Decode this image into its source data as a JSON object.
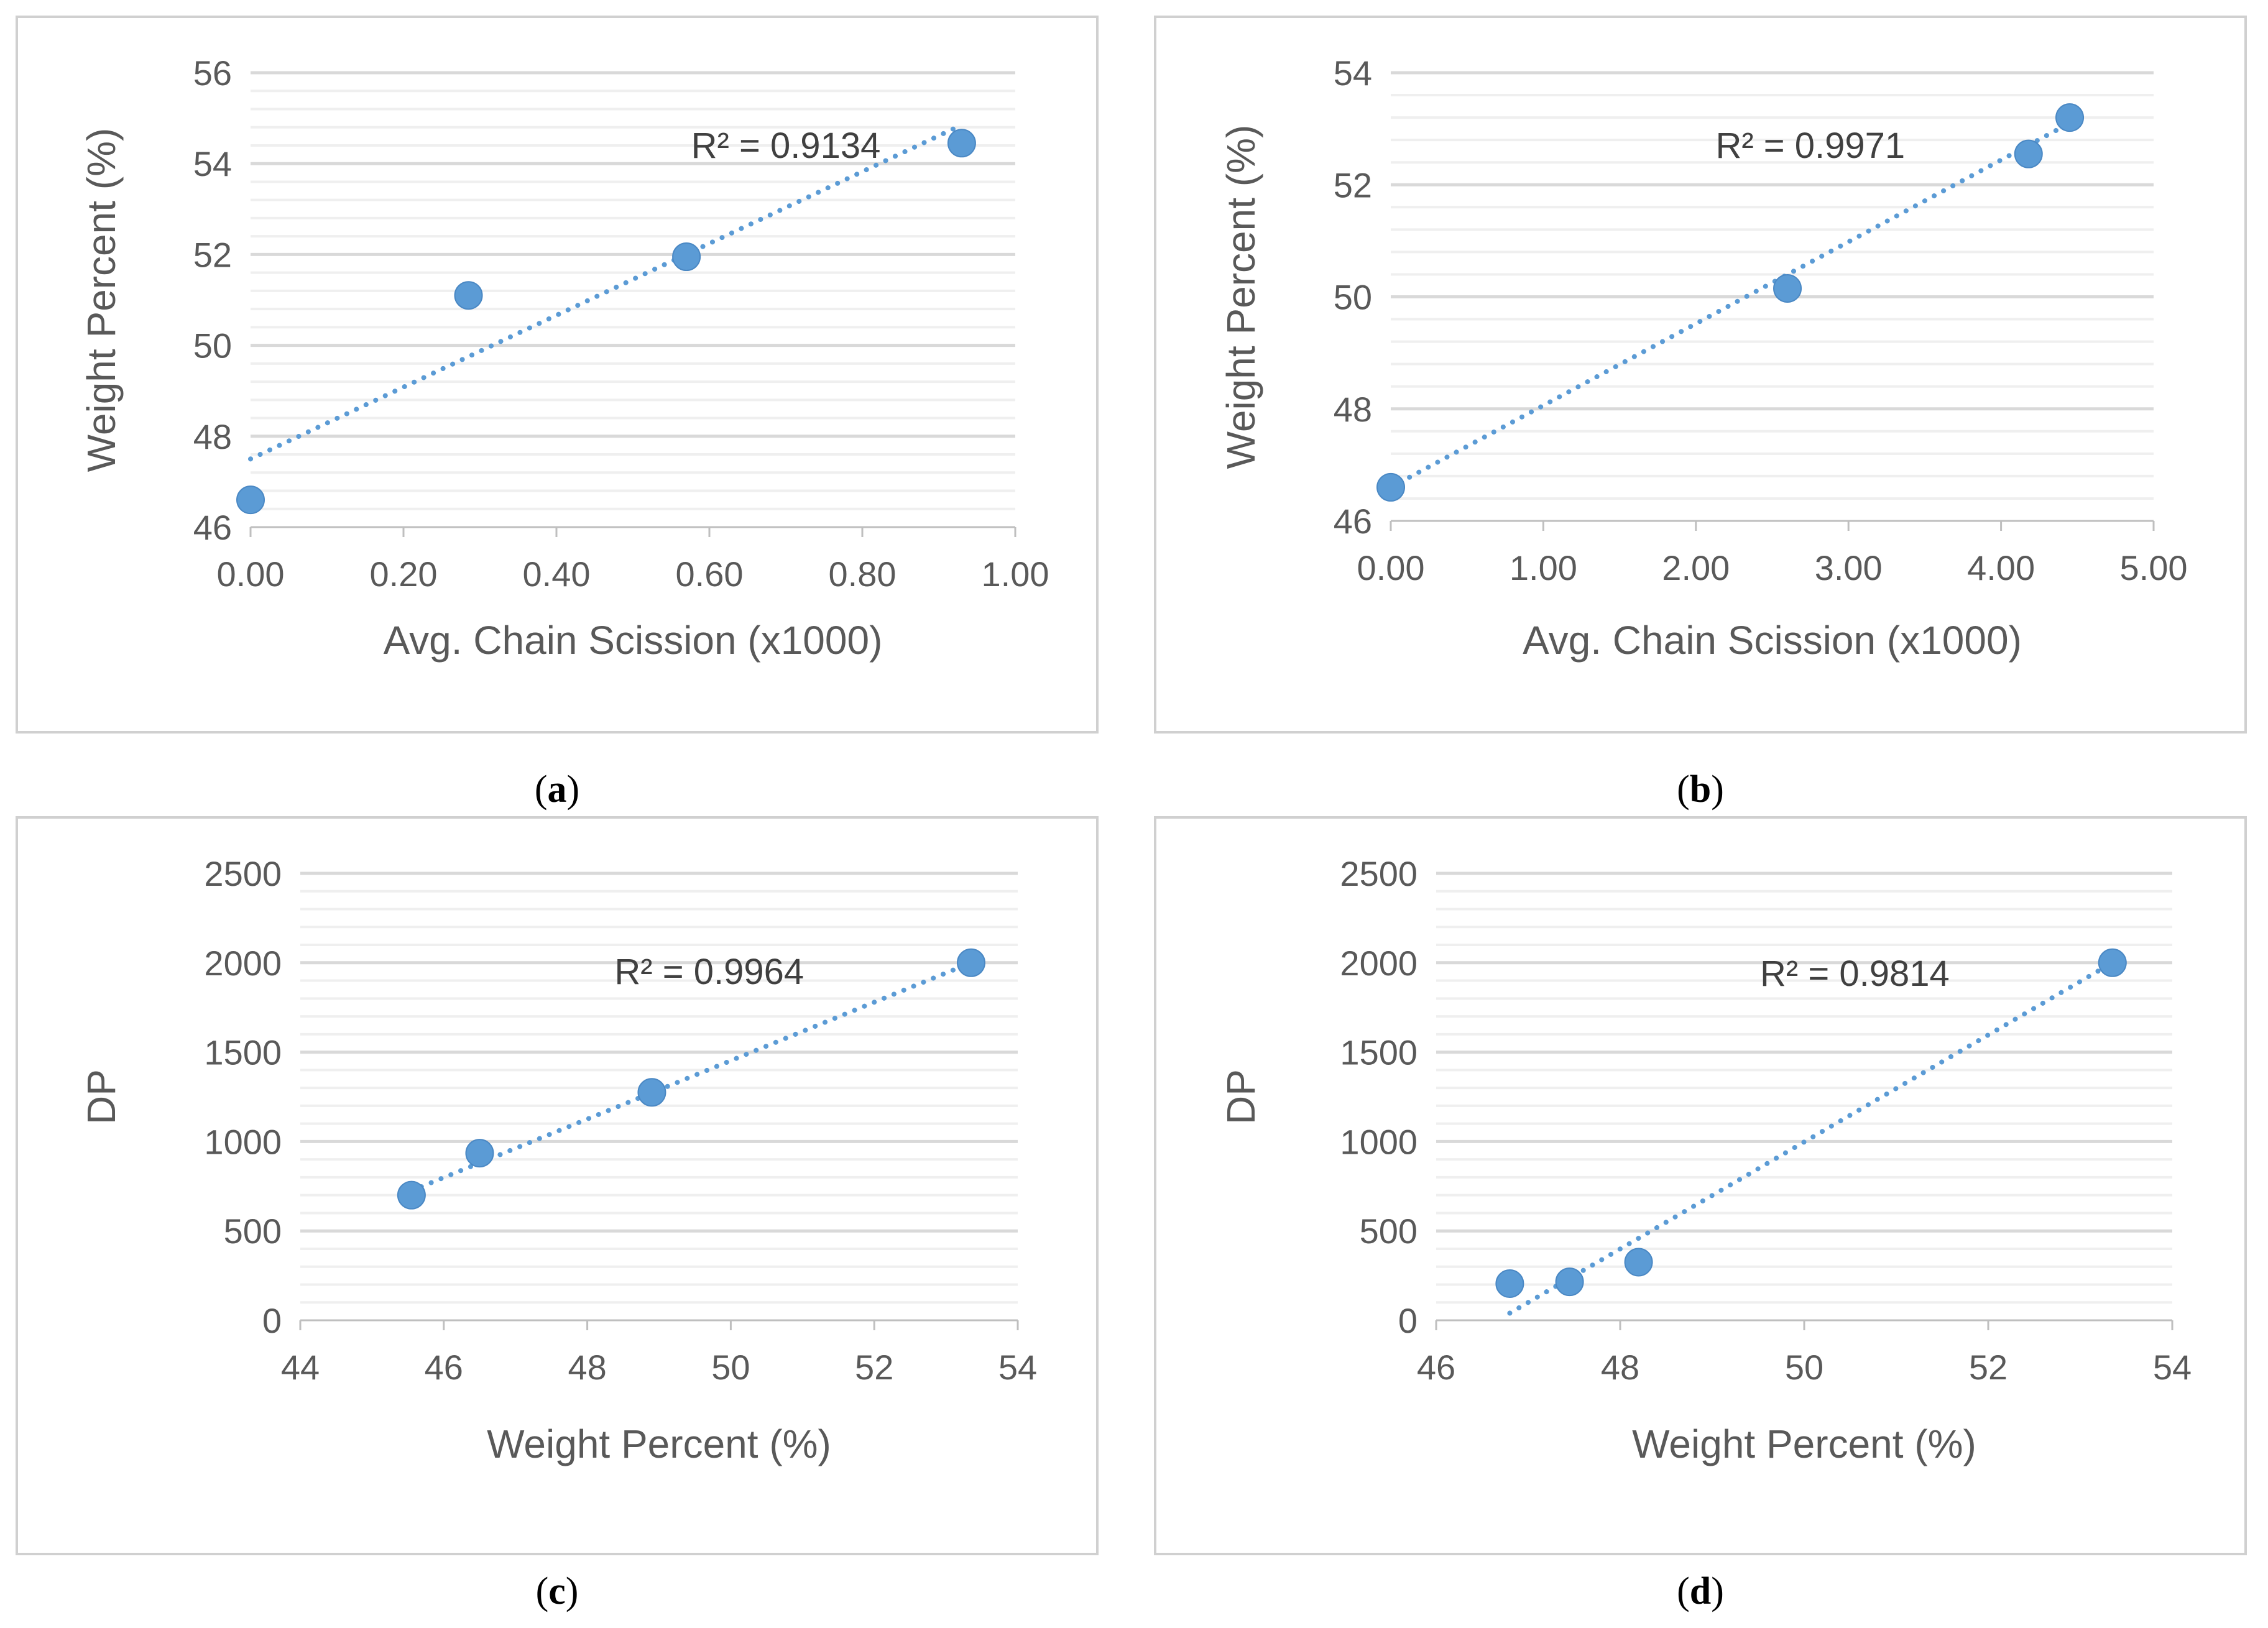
{
  "figure": {
    "colors": {
      "marker": "#5b9bd5",
      "trendline": "#5b9bd5",
      "major_grid": "#d9d9d9",
      "minor_grid": "#efefef",
      "text": "#595959"
    }
  },
  "chart_data": [
    {
      "id": "a",
      "type": "scatter",
      "caption_open": "(",
      "caption_letter": "a",
      "caption_close": ")",
      "xlabel": "Avg. Chain Scission (x1000)",
      "ylabel": "Weight Percent (%)",
      "xlim": [
        0,
        1
      ],
      "ylim": [
        46,
        56
      ],
      "xticks": [
        0,
        0.2,
        0.4,
        0.6,
        0.8,
        1.0
      ],
      "xtick_labels": [
        "0.00",
        "0.20",
        "0.40",
        "0.60",
        "0.80",
        "1.00"
      ],
      "yticks": [
        46,
        48,
        50,
        52,
        54,
        56
      ],
      "ytick_labels": [
        "46",
        "48",
        "50",
        "52",
        "54",
        "56"
      ],
      "minor_y_step": 0.4,
      "points": [
        {
          "x": 0.0,
          "y": 46.6
        },
        {
          "x": 0.285,
          "y": 51.1
        },
        {
          "x": 0.57,
          "y": 51.95
        },
        {
          "x": 0.93,
          "y": 54.45
        }
      ],
      "trendline": {
        "x_start": 0.0,
        "x_end": 0.93,
        "y_start": 47.5,
        "y_end": 54.85
      },
      "r2_text": "R² = 0.9134",
      "r2_anchor": {
        "x": 0.7,
        "y": 54.4
      }
    },
    {
      "id": "b",
      "type": "scatter",
      "caption_open": "(",
      "caption_letter": "b",
      "caption_close": ")",
      "xlabel": "Avg. Chain Scission (x1000)",
      "ylabel": "Weight Percent (%)",
      "xlim": [
        0,
        5
      ],
      "ylim": [
        46,
        54
      ],
      "xticks": [
        0,
        1,
        2,
        3,
        4,
        5
      ],
      "xtick_labels": [
        "0.00",
        "1.00",
        "2.00",
        "3.00",
        "4.00",
        "5.00"
      ],
      "yticks": [
        46,
        48,
        50,
        52,
        54
      ],
      "ytick_labels": [
        "46",
        "48",
        "50",
        "52",
        "54"
      ],
      "minor_y_step": 0.4,
      "points": [
        {
          "x": 0.0,
          "y": 46.6
        },
        {
          "x": 2.6,
          "y": 50.15
        },
        {
          "x": 4.18,
          "y": 52.55
        },
        {
          "x": 4.45,
          "y": 53.2
        }
      ],
      "trendline": {
        "x_start": 0.0,
        "x_end": 4.45,
        "y_start": 46.6,
        "y_end": 53.1
      },
      "r2_text": "R² = 0.9971",
      "r2_anchor": {
        "x": 2.75,
        "y": 52.7
      }
    },
    {
      "id": "c",
      "type": "scatter",
      "caption_open": "(",
      "caption_letter": "c",
      "caption_close": ")",
      "xlabel": "Weight Percent (%)",
      "ylabel": "DP",
      "xlim": [
        44,
        54
      ],
      "ylim": [
        0,
        2500
      ],
      "xticks": [
        44,
        46,
        48,
        50,
        52,
        54
      ],
      "xtick_labels": [
        "44",
        "46",
        "48",
        "50",
        "52",
        "54"
      ],
      "yticks": [
        0,
        500,
        1000,
        1500,
        2000,
        2500
      ],
      "ytick_labels": [
        "0",
        "500",
        "1000",
        "1500",
        "2000",
        "2500"
      ],
      "minor_y_step": 100,
      "points": [
        {
          "x": 45.55,
          "y": 700
        },
        {
          "x": 46.5,
          "y": 935
        },
        {
          "x": 48.9,
          "y": 1275
        },
        {
          "x": 53.35,
          "y": 2000
        }
      ],
      "trendline": {
        "x_start": 45.55,
        "x_end": 53.35,
        "y_start": 725,
        "y_end": 2000
      },
      "r2_text": "R² = 0.9964",
      "r2_anchor": {
        "x": 49.7,
        "y": 1950
      }
    },
    {
      "id": "d",
      "type": "scatter",
      "caption_open": "(",
      "caption_letter": "d",
      "caption_close": ")",
      "xlabel": "Weight  Percent (%)",
      "ylabel": "DP",
      "xlim": [
        46,
        54
      ],
      "ylim": [
        0,
        2500
      ],
      "xticks": [
        46,
        48,
        50,
        52,
        54
      ],
      "xtick_labels": [
        "46",
        "48",
        "50",
        "52",
        "54"
      ],
      "yticks": [
        0,
        500,
        1000,
        1500,
        2000,
        2500
      ],
      "ytick_labels": [
        "0",
        "500",
        "1000",
        "1500",
        "2000",
        "2500"
      ],
      "minor_y_step": 100,
      "points": [
        {
          "x": 46.8,
          "y": 205
        },
        {
          "x": 47.45,
          "y": 215
        },
        {
          "x": 48.2,
          "y": 325
        },
        {
          "x": 53.35,
          "y": 2000
        }
      ],
      "trendline": {
        "x_start": 46.8,
        "x_end": 53.35,
        "y_start": 40,
        "y_end": 2000
      },
      "r2_text": "R² = 0.9814",
      "r2_anchor": {
        "x": 50.55,
        "y": 1940
      }
    }
  ]
}
